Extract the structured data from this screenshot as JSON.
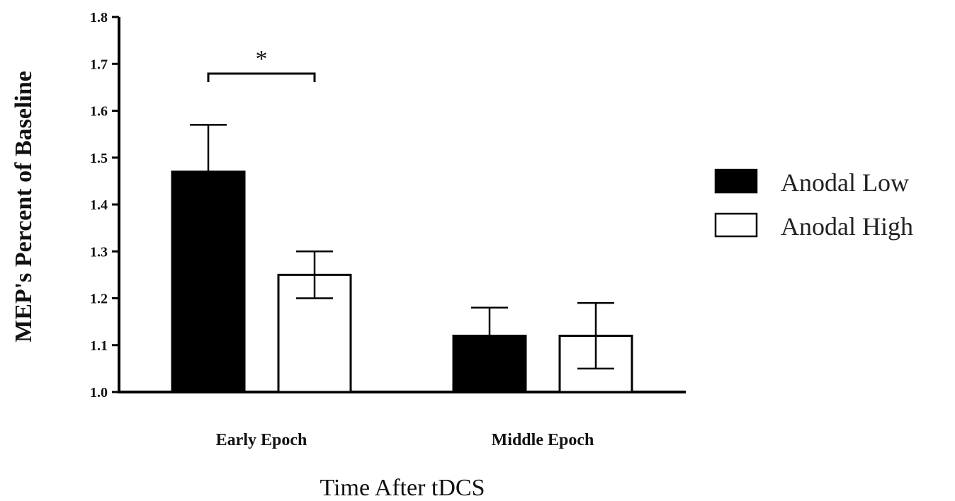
{
  "chart_data": {
    "type": "bar",
    "categories": [
      "Early Epoch",
      "Middle Epoch"
    ],
    "series": [
      {
        "name": "Anodal Low",
        "values": [
          1.47,
          1.12
        ],
        "errors": [
          0.1,
          0.06
        ],
        "color": "#000000"
      },
      {
        "name": "Anodal High",
        "values": [
          1.25,
          1.12
        ],
        "errors": [
          0.05,
          0.07
        ],
        "color": "#ffffff"
      }
    ],
    "ylim": [
      1.0,
      1.8
    ],
    "yticks": [
      "1.0",
      "1.1",
      "1.2",
      "1.3",
      "1.4",
      "1.5",
      "1.6",
      "1.7",
      "1.8"
    ],
    "xlabel": "Time After tDCS",
    "ylabel": "MEP's Percent of Baseline",
    "legend_position": "right",
    "annotations": [
      {
        "text": "*",
        "category": "Early Epoch",
        "between_series": [
          0,
          1
        ]
      }
    ],
    "grid": false
  }
}
